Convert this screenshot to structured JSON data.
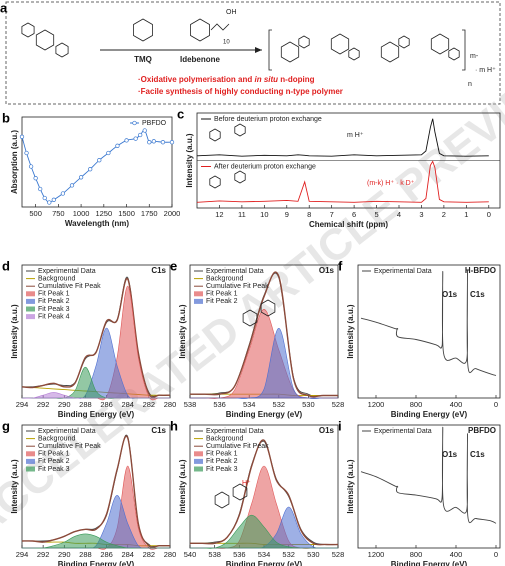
{
  "scheme": {
    "panel": "a",
    "reagent1": "TMQ",
    "reagent2": "Idebenone",
    "oh": "OH",
    "repeat": "10",
    "charge": "m-",
    "counterion": "· m H⁺",
    "n": "n",
    "bullet1_prefix": "·Oxidative polymerisation and ",
    "bullet1_italic": "in situ",
    "bullet1_suffix": " n-doping",
    "bullet2": "·Facile synthesis of highly conducting n-type polymer"
  },
  "watermark": "ACCELERATED ARTICLE PREVIEW",
  "chart_data": [
    {
      "type": "line",
      "panel": "b",
      "x_label": "Wavelength (nm)",
      "y_label": "Absorption (a.u.)",
      "markers": true,
      "legend": "upper right",
      "x": [
        350,
        400,
        450,
        500,
        550,
        600,
        650,
        700,
        800,
        900,
        1000,
        1100,
        1200,
        1300,
        1400,
        1500,
        1600,
        1650,
        1700,
        1750,
        1800,
        1900,
        2000
      ],
      "xlim": [
        350,
        2000
      ],
      "xticks": [
        500,
        750,
        1000,
        1250,
        1500,
        1750,
        2000
      ],
      "ylim": [
        0,
        100
      ],
      "series": [
        {
          "name": "PBFDO",
          "color": "#3a78d0",
          "values": [
            78,
            60,
            45,
            32,
            20,
            10,
            5,
            8,
            15,
            24,
            33,
            42,
            52,
            60,
            68,
            74,
            76,
            80,
            85,
            72,
            73,
            72,
            72
          ]
        }
      ]
    },
    {
      "type": "line",
      "panel": "c",
      "x_label": "Chemical shift (ppm)",
      "y_label": "Intensity (a.u.)",
      "split": true,
      "legend": "upper left",
      "annotations": [
        "m H⁺",
        "(m-k) H⁺ · k D⁺"
      ],
      "x": [
        13,
        12,
        11,
        10,
        9,
        8.5,
        8.2,
        8,
        7,
        6,
        5,
        4,
        3,
        2.8,
        2.6,
        2.5,
        2.4,
        2.2,
        2,
        1,
        0
      ],
      "xlim": [
        13,
        -0.5
      ],
      "xticks": [
        12,
        11,
        10,
        9,
        8,
        7,
        6,
        5,
        4,
        3,
        2,
        1,
        0
      ],
      "ylim": [
        0,
        100
      ],
      "series": [
        {
          "name": "Before deuterium proton exchange",
          "color": "#111111",
          "values": [
            10,
            12,
            9,
            11,
            10,
            12,
            11,
            10,
            9,
            12,
            10,
            11,
            12,
            20,
            70,
            88,
            60,
            15,
            10,
            9,
            10
          ]
        },
        {
          "name": "After deuterium proton exchange",
          "color": "#e02020",
          "values": [
            12,
            15,
            13,
            14,
            16,
            14,
            55,
            14,
            13,
            12,
            14,
            13,
            12,
            20,
            90,
            98,
            85,
            18,
            13,
            12,
            13
          ]
        }
      ]
    },
    {
      "type": "line",
      "panel": "d",
      "title": "C1s",
      "x_label": "Binding Energy (eV)",
      "y_label": "Intensity (a.u.)",
      "legend": "upper left",
      "x": [
        294,
        293,
        292,
        291,
        290,
        289,
        288,
        287,
        286,
        285,
        284,
        283,
        282,
        281,
        280
      ],
      "xlim": [
        294,
        280
      ],
      "xticks": [
        294,
        292,
        290,
        288,
        286,
        284,
        282,
        280
      ],
      "ylim": [
        0,
        95
      ],
      "series": [
        {
          "name": "Experimental Data",
          "color": "#444444",
          "values": [
            8,
            8,
            9,
            10,
            9,
            11,
            28,
            33,
            54,
            56,
            86,
            31,
            4,
            2,
            2
          ]
        },
        {
          "name": "Background",
          "color": "#b8a000",
          "values": [
            8,
            7.5,
            7,
            6.5,
            6,
            5.5,
            5,
            4.5,
            4,
            3.5,
            3,
            2.5,
            2,
            2,
            2
          ]
        },
        {
          "name": "Cumulative Fit Peak",
          "color": "#8b4a3a",
          "values": [
            8,
            7.5,
            9,
            10.5,
            8,
            10.5,
            29,
            32.5,
            55,
            55.5,
            85,
            32.5,
            3,
            2,
            2
          ]
        },
        {
          "name": "Fit Peak 1",
          "color": "#e05a5a",
          "fill": true,
          "values": [
            0,
            0,
            0,
            0,
            0,
            0,
            0,
            0,
            1,
            29,
            80,
            29,
            1,
            0,
            0
          ]
        },
        {
          "name": "Fit Peak 2",
          "color": "#4f6fd0",
          "fill": true,
          "values": [
            0,
            0,
            0,
            0,
            0,
            0,
            2,
            23,
            50,
            23,
            2,
            0,
            0,
            0,
            0
          ]
        },
        {
          "name": "Fit Peak 3",
          "color": "#3a9a5a",
          "fill": true,
          "values": [
            0,
            0,
            0,
            0,
            0,
            5,
            22,
            5,
            0,
            0,
            0,
            0,
            0,
            0,
            0
          ]
        },
        {
          "name": "Fit Peak 4",
          "color": "#b57fd6",
          "fill": true,
          "values": [
            0,
            0,
            2,
            4,
            2,
            0,
            0,
            0,
            0,
            0,
            0,
            0,
            0,
            0,
            0
          ]
        }
      ]
    },
    {
      "type": "line",
      "panel": "e",
      "title": "O1s",
      "x_label": "Binding Energy (eV)",
      "y_label": "Intensity (a.u.)",
      "legend": "upper left",
      "x": [
        538,
        537,
        536,
        535,
        534,
        533,
        532,
        531,
        530,
        529,
        528
      ],
      "xlim": [
        538,
        528
      ],
      "xticks": [
        538,
        536,
        534,
        532,
        530,
        528
      ],
      "ylim": [
        0,
        105
      ],
      "series": [
        {
          "name": "Experimental Data",
          "color": "#444444",
          "values": [
            3,
            3,
            4,
            9,
            42,
            81,
            95,
            16,
            3,
            2,
            2
          ]
        },
        {
          "name": "Background",
          "color": "#b8a000",
          "values": [
            3,
            3,
            3,
            3,
            3,
            3,
            3,
            2,
            2,
            2,
            2
          ]
        },
        {
          "name": "Cumulative Fit Peak",
          "color": "#8b4a3a",
          "values": [
            3,
            3,
            3,
            9,
            41,
            80,
            96,
            15,
            2,
            2,
            2
          ]
        },
        {
          "name": "Fit Peak 1",
          "color": "#e05a5a",
          "fill": true,
          "values": [
            0,
            0,
            0,
            6,
            38,
            70,
            38,
            6,
            0,
            0,
            0
          ]
        },
        {
          "name": "Fit Peak 2",
          "color": "#4f6fd0",
          "fill": true,
          "values": [
            0,
            0,
            0,
            0,
            0,
            7,
            55,
            7,
            0,
            0,
            0
          ]
        }
      ]
    },
    {
      "type": "line",
      "panel": "f",
      "title": "H-BFDO",
      "x_label": "Binding Energy (eV)",
      "y_label": "Intensity (a.u.)",
      "legend": "upper left",
      "peak_labels": [
        "O1s",
        "C1s"
      ],
      "x": [
        1350,
        1200,
        1000,
        990,
        980,
        800,
        600,
        545,
        535,
        532,
        525,
        400,
        295,
        287,
        285,
        282,
        200,
        50,
        0
      ],
      "xlim": [
        1380,
        -40
      ],
      "xticks": [
        1200,
        800,
        400,
        0
      ],
      "ylim": [
        0,
        100
      ],
      "series": [
        {
          "name": "Experimental Data",
          "color": "#444444",
          "values": [
            60,
            57,
            52,
            52,
            46,
            44,
            40,
            38,
            50,
            95,
            34,
            30,
            28,
            60,
            95,
            25,
            22,
            18,
            17
          ]
        }
      ]
    },
    {
      "type": "line",
      "panel": "g",
      "title": "C1s",
      "x_label": "Binding Energy (eV)",
      "y_label": "Intensity (a.u.)",
      "legend": "upper left",
      "x": [
        294,
        293,
        292,
        291,
        290,
        289,
        288,
        287,
        286,
        285,
        284,
        283,
        282,
        281,
        280
      ],
      "xlim": [
        294,
        280
      ],
      "xticks": [
        294,
        292,
        290,
        288,
        286,
        284,
        282,
        280
      ],
      "ylim": [
        0,
        105
      ],
      "series": [
        {
          "name": "Experimental Data",
          "color": "#444444",
          "values": [
            6,
            6,
            6,
            7,
            10,
            14,
            16,
            17,
            28,
            66,
            95,
            20,
            3,
            2,
            2
          ]
        },
        {
          "name": "Background",
          "color": "#b8a000",
          "values": [
            6,
            6,
            5,
            5,
            5,
            4,
            4,
            4,
            3,
            3,
            3,
            2,
            2,
            2,
            2
          ]
        },
        {
          "name": "Cumulative Fit Peak",
          "color": "#8b4a3a",
          "values": [
            6,
            6,
            5,
            7,
            10,
            14,
            16,
            16,
            29,
            67,
            94,
            21,
            2,
            2,
            2
          ]
        },
        {
          "name": "Fit Peak 1",
          "color": "#e05a5a",
          "fill": true,
          "values": [
            0,
            0,
            0,
            0,
            0,
            0,
            0,
            0,
            0,
            17,
            70,
            17,
            0,
            0,
            0
          ]
        },
        {
          "name": "Fit Peak 2",
          "color": "#4f6fd0",
          "fill": true,
          "values": [
            0,
            0,
            0,
            0,
            0,
            0,
            0,
            2,
            21,
            45,
            21,
            2,
            0,
            0,
            0
          ]
        },
        {
          "name": "Fit Peak 3",
          "color": "#3a9a5a",
          "fill": true,
          "values": [
            0,
            0,
            0,
            2,
            5,
            10,
            12,
            10,
            5,
            2,
            0,
            0,
            0,
            0,
            0
          ]
        }
      ]
    },
    {
      "type": "line",
      "panel": "h",
      "title": "O1s",
      "x_label": "Binding Energy (eV)",
      "y_label": "Intensity (a.u.)",
      "legend": "upper left",
      "annotations": [
        "H⁺"
      ],
      "x": [
        540,
        539,
        538,
        537,
        536,
        535,
        534,
        533,
        532,
        531,
        530,
        529,
        528
      ],
      "xlim": [
        540,
        528
      ],
      "xticks": [
        540,
        538,
        536,
        534,
        532,
        530,
        528
      ],
      "ylim": [
        0,
        105
      ],
      "series": [
        {
          "name": "Experimental Data",
          "color": "#444444",
          "values": [
            4,
            4,
            5,
            9,
            29,
            71,
            91,
            59,
            44,
            16,
            5,
            3,
            3
          ]
        },
        {
          "name": "Background",
          "color": "#b8a000",
          "values": [
            4,
            4,
            4,
            4,
            4,
            4,
            3,
            3,
            3,
            3,
            3,
            3,
            3
          ]
        },
        {
          "name": "Cumulative Fit Peak",
          "color": "#8b4a3a",
          "values": [
            4,
            4,
            4,
            9,
            28,
            70,
            92,
            58,
            45,
            15,
            4,
            3,
            3
          ]
        },
        {
          "name": "Fit Peak 1",
          "color": "#e05a5a",
          "fill": true,
          "values": [
            0,
            0,
            0,
            0,
            6,
            38,
            70,
            38,
            6,
            0,
            0,
            0,
            0
          ]
        },
        {
          "name": "Fit Peak 2",
          "color": "#4f6fd0",
          "fill": true,
          "values": [
            0,
            0,
            0,
            0,
            0,
            0,
            1,
            12,
            35,
            12,
            1,
            0,
            0
          ]
        },
        {
          "name": "Fit Peak 3",
          "color": "#3a9a5a",
          "fill": true,
          "values": [
            0,
            0,
            0,
            5,
            18,
            28,
            18,
            5,
            1,
            0,
            0,
            0,
            0
          ]
        }
      ]
    },
    {
      "type": "line",
      "panel": "i",
      "title": "PBFDO",
      "x_label": "Binding Energy (eV)",
      "y_label": "Intensity (a.u.)",
      "legend": "upper left",
      "peak_labels": [
        "O1s",
        "C1s"
      ],
      "x": [
        1350,
        1200,
        1000,
        990,
        980,
        800,
        600,
        545,
        535,
        532,
        525,
        400,
        295,
        287,
        285,
        282,
        200,
        50,
        0
      ],
      "xlim": [
        1380,
        -40
      ],
      "xticks": [
        1200,
        800,
        400,
        0
      ],
      "ylim": [
        0,
        100
      ],
      "series": [
        {
          "name": "Experimental Data",
          "color": "#444444",
          "values": [
            62,
            58,
            50,
            50,
            45,
            43,
            40,
            38,
            55,
            98,
            35,
            33,
            30,
            62,
            92,
            26,
            24,
            22,
            20
          ]
        }
      ]
    }
  ]
}
